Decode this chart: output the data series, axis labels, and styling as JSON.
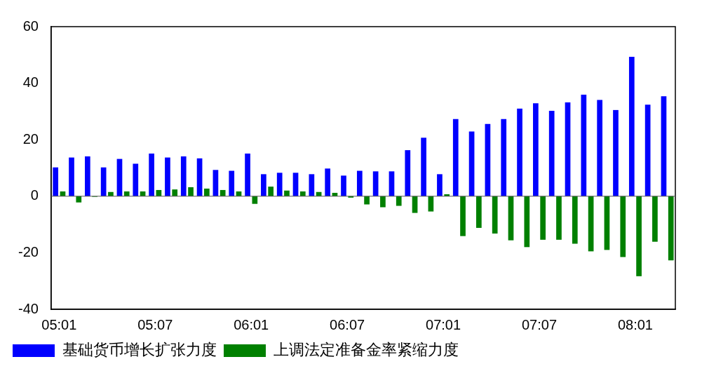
{
  "chart_data": {
    "type": "bar",
    "categories": [
      "05:01",
      null,
      null,
      null,
      null,
      null,
      "05:07",
      null,
      null,
      null,
      null,
      null,
      "06:01",
      null,
      null,
      null,
      null,
      null,
      "06:07",
      null,
      null,
      null,
      null,
      null,
      "07:01",
      null,
      null,
      null,
      null,
      null,
      "07:07",
      null,
      null,
      null,
      null,
      null,
      "08:01",
      null,
      null
    ],
    "series": [
      {
        "name": "基础货币增长扩张力度",
        "color": "#0000ff",
        "values": [
          10.2,
          13.7,
          14.1,
          10.2,
          13.2,
          11.5,
          15.1,
          13.7,
          14.1,
          13.4,
          9.3,
          9.0,
          15.1,
          7.8,
          8.3,
          8.3,
          7.8,
          9.8,
          7.3,
          9.0,
          8.8,
          8.8,
          16.3,
          20.7,
          7.8,
          27.3,
          22.9,
          25.6,
          27.3,
          31.0,
          32.9,
          30.2,
          33.2,
          35.9,
          34.1,
          30.5,
          49.3,
          32.4,
          35.4
        ]
      },
      {
        "name": "上调法定准备金率紧缩力度",
        "color": "#008000",
        "values": [
          1.7,
          -2.2,
          -0.2,
          1.5,
          1.7,
          1.7,
          2.2,
          2.4,
          3.2,
          2.7,
          2.2,
          1.7,
          -2.7,
          3.4,
          2.0,
          1.7,
          1.5,
          1.2,
          -0.5,
          -2.9,
          -3.9,
          -3.4,
          -5.9,
          -5.4,
          0.7,
          -14.1,
          -11.2,
          -13.2,
          -15.6,
          -18.0,
          -15.4,
          -15.4,
          -16.8,
          -19.5,
          -19.0,
          -21.5,
          -28.3,
          -16.1,
          -22.7
        ]
      }
    ],
    "ylim": [
      -40,
      60
    ],
    "yticks": [
      -40,
      -20,
      0,
      20,
      40,
      60
    ],
    "grid": false,
    "ref_lines": [
      {
        "axis": "y",
        "value": 0,
        "color": "#555555"
      }
    ],
    "legend": "bottom"
  }
}
